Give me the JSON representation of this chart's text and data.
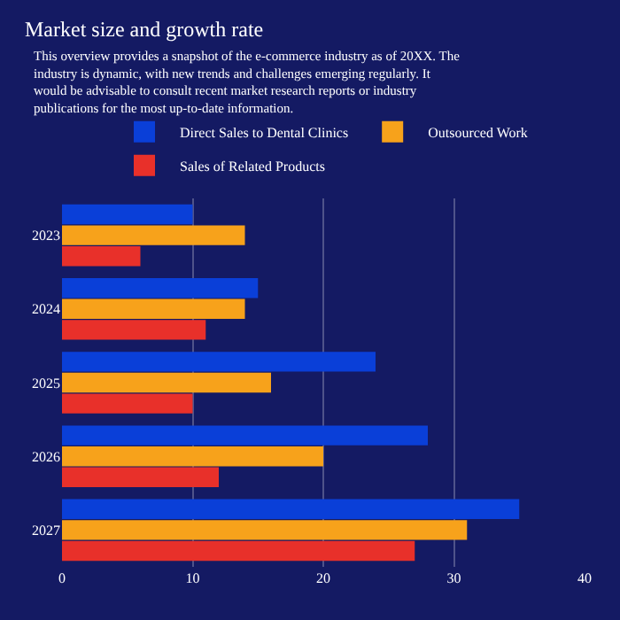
{
  "chart_data": {
    "type": "bar",
    "orientation": "horizontal",
    "title": "Market size and growth rate",
    "subtitle": "This overview provides a snapshot of the e-commerce industry as of 20XX. The industry is dynamic, with new trends and challenges emerging regularly. It would be advisable to consult recent market research reports or industry publications for the most up-to-date information.",
    "categories": [
      "2023",
      "2024",
      "2025",
      "2026",
      "2027"
    ],
    "series": [
      {
        "name": "Direct Sales to Dental Clinics",
        "color": "#0a3fd8",
        "values": [
          10,
          15,
          24,
          28,
          35
        ]
      },
      {
        "name": "Outsourced Work",
        "color": "#f7a21b",
        "values": [
          14,
          14,
          16,
          20,
          31
        ]
      },
      {
        "name": "Sales of Related Products",
        "color": "#e8302a",
        "values": [
          6,
          11,
          10,
          12,
          27
        ]
      }
    ],
    "xlim": [
      0,
      40
    ],
    "xticks": [
      0,
      10,
      20,
      30,
      40
    ],
    "grid": "x",
    "legend": "top"
  }
}
